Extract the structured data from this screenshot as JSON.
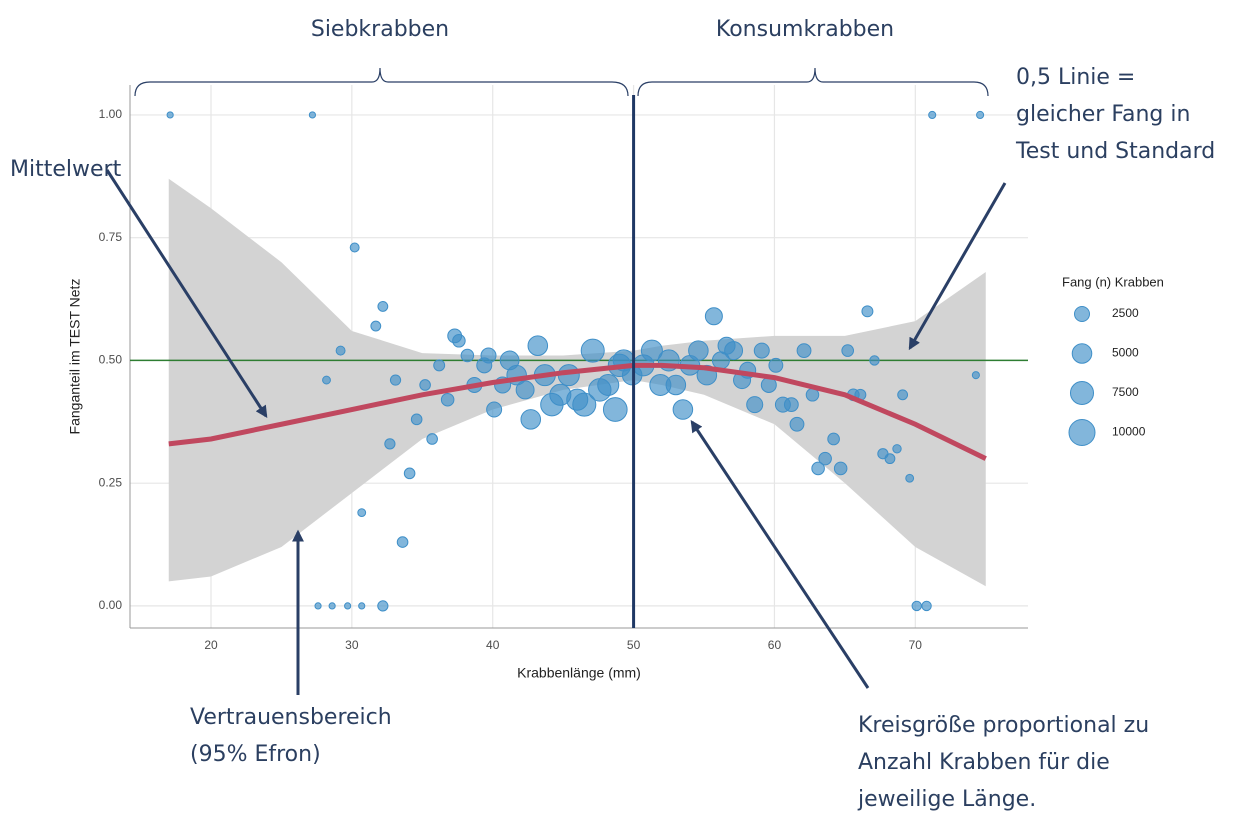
{
  "chart_data": {
    "type": "bubble",
    "xlabel": "Krabbenlänge (mm)",
    "ylabel": "Fanganteil im TEST Netz",
    "xlim": [
      14.25,
      78
    ],
    "ylim": [
      -0.045,
      1.061
    ],
    "xticks": [
      20,
      30,
      40,
      50,
      60,
      70
    ],
    "yticks": [
      {
        "value": 0,
        "label": "0.00"
      },
      {
        "value": 0.25,
        "label": "0.25"
      },
      {
        "value": 0.5,
        "label": "0.50"
      },
      {
        "value": 0.75,
        "label": "0.75"
      },
      {
        "value": 1,
        "label": "1.00"
      }
    ],
    "grid": true,
    "hline": {
      "value": 0.5,
      "color": "#2e7d32"
    },
    "vline": {
      "value": 50,
      "color": "#1f3864"
    },
    "series": [
      {
        "color": "#3f8fc8",
        "x": [
          17.1,
          27.2,
          30.2,
          32.2,
          31.7,
          29.2,
          28.2,
          33.1,
          32.7,
          34.1,
          34.6,
          35.7,
          35.2,
          36.2,
          36.8,
          37.3,
          37.6,
          38.2,
          38.7,
          39.4,
          39.7,
          40.1,
          40.7,
          41.2,
          41.7,
          42.3,
          42.7,
          43.2,
          43.7,
          44.2,
          44.8,
          45.4,
          46.0,
          46.5,
          47.1,
          47.6,
          48.2,
          48.7,
          49.0,
          49.3,
          49.9,
          50.7,
          51.3,
          51.9,
          52.5,
          53.0,
          53.5,
          54.0,
          54.6,
          55.2,
          55.7,
          56.2,
          56.6,
          57.1,
          57.7,
          58.1,
          58.6,
          59.1,
          59.6,
          60.1,
          60.6,
          61.2,
          61.6,
          62.1,
          62.7,
          63.1,
          63.6,
          64.2,
          64.7,
          65.2,
          65.6,
          66.1,
          66.6,
          67.1,
          67.7,
          68.2,
          68.7,
          69.1,
          69.6,
          70.1,
          70.8,
          71.2,
          74.6,
          74.3,
          27.6,
          28.6,
          29.7,
          30.7,
          32.2,
          30.7,
          33.6
        ],
        "values": [
          1.0,
          1.0,
          0.73,
          0.61,
          0.57,
          0.52,
          0.46,
          0.46,
          0.33,
          0.27,
          0.38,
          0.34,
          0.45,
          0.49,
          0.42,
          0.55,
          0.54,
          0.51,
          0.45,
          0.49,
          0.51,
          0.4,
          0.45,
          0.5,
          0.47,
          0.44,
          0.38,
          0.53,
          0.47,
          0.41,
          0.43,
          0.47,
          0.42,
          0.41,
          0.52,
          0.44,
          0.45,
          0.4,
          0.49,
          0.5,
          0.47,
          0.49,
          0.52,
          0.45,
          0.5,
          0.45,
          0.4,
          0.49,
          0.52,
          0.47,
          0.59,
          0.5,
          0.53,
          0.52,
          0.46,
          0.48,
          0.41,
          0.52,
          0.45,
          0.49,
          0.41,
          0.41,
          0.37,
          0.52,
          0.43,
          0.28,
          0.3,
          0.34,
          0.28,
          0.52,
          0.43,
          0.43,
          0.6,
          0.5,
          0.31,
          0.3,
          0.32,
          0.43,
          0.26,
          0.0,
          0.0,
          1.0,
          1.0,
          0.47,
          0.0,
          0.0,
          0.0,
          0.0,
          0.0,
          0.19,
          0.13
        ],
        "sizes": [
          100,
          100,
          500,
          700,
          700,
          500,
          300,
          800,
          800,
          900,
          900,
          900,
          900,
          1000,
          1500,
          2000,
          1500,
          1500,
          2500,
          2500,
          2500,
          2500,
          3000,
          4500,
          5000,
          4000,
          5000,
          5000,
          6000,
          7000,
          6000,
          6000,
          6000,
          7500,
          7500,
          7000,
          6000,
          8000,
          7000,
          6000,
          5000,
          6000,
          6000,
          6000,
          6000,
          5000,
          5000,
          5000,
          5000,
          5000,
          3500,
          3500,
          3500,
          4000,
          3500,
          3000,
          3000,
          2500,
          2500,
          2000,
          2500,
          2000,
          2000,
          2000,
          1500,
          1500,
          1500,
          1200,
          1500,
          1200,
          1200,
          1000,
          1000,
          600,
          800,
          700,
          400,
          700,
          300,
          600,
          600,
          200,
          200,
          200,
          100,
          100,
          100,
          100,
          800,
          300,
          900
        ]
      }
    ],
    "fit": {
      "color": "#c0485f",
      "band_color": "#d3d3d3",
      "x": [
        17,
        20,
        25,
        30,
        35,
        40,
        45,
        50,
        52,
        55,
        60,
        65,
        70,
        75
      ],
      "values": [
        0.33,
        0.34,
        0.37,
        0.4,
        0.43,
        0.455,
        0.475,
        0.49,
        0.49,
        0.485,
        0.465,
        0.43,
        0.37,
        0.3
      ],
      "lower": [
        0.05,
        0.06,
        0.12,
        0.23,
        0.34,
        0.4,
        0.44,
        0.46,
        0.45,
        0.43,
        0.37,
        0.25,
        0.12,
        0.04
      ],
      "upper": [
        0.87,
        0.81,
        0.7,
        0.56,
        0.515,
        0.51,
        0.51,
        0.52,
        0.53,
        0.54,
        0.55,
        0.55,
        0.58,
        0.68
      ]
    },
    "size_legend": {
      "title": "Fang (n) Krabben",
      "values": [
        2500,
        5000,
        7500,
        10000
      ]
    },
    "annotations": {
      "siebkrabben": "Siebkrabben",
      "konsumkrabben": "Konsumkrabben",
      "linie": [
        "0,5 Linie =",
        "gleicher Fang in",
        "Test und Standard"
      ],
      "mittelwert": "Mittelwert",
      "vertrauen": [
        "Vertrauensbereich",
        "(95% Efron)"
      ],
      "kreis": [
        "Kreisgröße proportional zu",
        "Anzahl Krabben für die",
        "jeweilige Länge."
      ]
    }
  }
}
